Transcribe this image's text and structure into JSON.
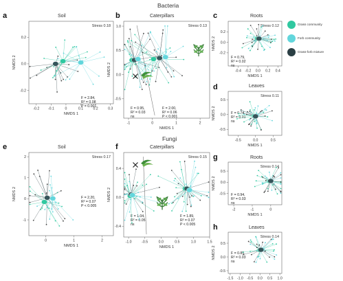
{
  "sections": {
    "bacteria": "Bacteria",
    "fungi": "Fungi"
  },
  "colors": {
    "grass": "#30c8a0",
    "forb": "#62d6dc",
    "mixture": "#2b3f44",
    "mixture_centroid": "#35555a",
    "line_dark": "#3d4d52",
    "axis": "#666666"
  },
  "legend": [
    {
      "label": "Grass community",
      "color": "#30c8a0"
    },
    {
      "label": "Forb community",
      "color": "#62d6dc"
    },
    {
      "label": "Grass-forb mixture",
      "color": "#2b3f44"
    }
  ],
  "chart_data": [
    {
      "id": "a",
      "letter": "a",
      "title": "Soil",
      "type": "scatter",
      "xlabel": "NMDS 1",
      "ylabel": "NMDS 2",
      "stress": "Stress 0.18",
      "xlim": [
        -0.25,
        0.32
      ],
      "ylim": [
        -0.3,
        0.32
      ],
      "xticks": [
        -0.2,
        -0.1,
        0,
        0.1,
        0.2,
        0.3
      ],
      "yticks": [
        -0.2,
        0,
        0.2
      ],
      "xtick_labels": [
        "-0.2",
        "-0.1",
        "0",
        "0.1",
        "0.2",
        "0.3"
      ],
      "ytick_labels": [
        "-0.2",
        "0.0",
        "0.2"
      ],
      "stats": {
        "f": "F = 2.84,",
        "r2": "R² = 0.08",
        "p": "P = 0.001"
      },
      "centroids": [
        {
          "group": "mixture",
          "x": -0.07,
          "y": 0.0
        },
        {
          "group": "grass",
          "x": -0.02,
          "y": 0.02
        },
        {
          "group": "forb",
          "x": 0.1,
          "y": 0.01
        }
      ]
    },
    {
      "id": "b",
      "letter": "b",
      "title": "Caterpillars",
      "type": "scatter",
      "xlabel": "NMDS 1",
      "ylabel": "NMDS 2",
      "stress": "Stress 0.13",
      "xlim": [
        -1.2,
        2.4
      ],
      "ylim": [
        -0.9,
        1.1
      ],
      "xticks": [
        -1,
        0,
        1,
        2
      ],
      "yticks": [
        -0.5,
        0,
        0.5,
        1.0
      ],
      "xtick_labels": [
        "-1",
        "0",
        "1",
        "2"
      ],
      "ytick_labels": [
        "-0.5",
        "0.0",
        "0.5",
        "1.0"
      ],
      "stats_left": {
        "f": "F = 0.95,",
        "r2": "R² = 0.03",
        "p": "ns"
      },
      "stats_right": {
        "f": "F = 2.00,",
        "r2": "R² = 0.06",
        "p": "P < 0.001"
      },
      "centroids": [
        {
          "group": "grass",
          "x": -0.85,
          "y": 0.3
        },
        {
          "group": "mixture",
          "x": -0.75,
          "y": 0.3
        },
        {
          "group": "forb",
          "x": -0.6,
          "y": 0.32
        },
        {
          "group": "grass",
          "x": 0.05,
          "y": 0.32
        },
        {
          "group": "mixture",
          "x": 0.3,
          "y": 0.34
        },
        {
          "group": "forb",
          "x": 0.55,
          "y": 0.36
        }
      ]
    },
    {
      "id": "c",
      "letter": "c",
      "title": "Roots",
      "type": "scatter",
      "xlabel": "NMDS 1",
      "ylabel": "NMDS 2",
      "stress": "Stress 0.12",
      "xlim": [
        -0.6,
        0.48
      ],
      "ylim": [
        -0.45,
        0.4
      ],
      "xticks": [
        -0.4,
        -0.2,
        0,
        0.2,
        0.4
      ],
      "yticks": [
        -0.2,
        0,
        0.2
      ],
      "xtick_labels": [
        "-0.4",
        "-0.2",
        "0.0",
        "0.2",
        "0.4"
      ],
      "ytick_labels": [
        "-0.2",
        "0.0",
        "0.2"
      ],
      "stats": {
        "f": "F = 0.79,",
        "r2": "R² = 0.02",
        "p": "ns"
      },
      "centroids": [
        {
          "group": "grass",
          "x": -0.01,
          "y": 0.07
        },
        {
          "group": "forb",
          "x": 0.03,
          "y": 0.07
        },
        {
          "group": "mixture",
          "x": 0.02,
          "y": 0.07
        }
      ]
    },
    {
      "id": "d",
      "letter": "d",
      "title": "Leaves",
      "type": "scatter",
      "xlabel": "NMDS 1",
      "ylabel": "NMDS 2",
      "stress": "Stress 0.11",
      "xlim": [
        -0.78,
        0.75
      ],
      "ylim": [
        -0.7,
        0.78
      ],
      "xticks": [
        -0.5,
        0,
        0.5
      ],
      "yticks": [
        -0.5,
        0,
        0.5
      ],
      "xtick_labels": [
        "-0.5",
        "0.0",
        "0.5"
      ],
      "ytick_labels": [
        "-0.5",
        "0.0",
        "0.5"
      ],
      "stats": {
        "f": "F = 0.74,",
        "r2": "R² = 0.01",
        "p": "ns"
      },
      "centroids": [
        {
          "group": "grass",
          "x": -0.03,
          "y": -0.05
        },
        {
          "group": "forb",
          "x": 0.02,
          "y": -0.04
        },
        {
          "group": "mixture",
          "x": 0.0,
          "y": -0.06
        }
      ]
    },
    {
      "id": "e",
      "letter": "e",
      "title": "Soil",
      "type": "scatter",
      "xlabel": "NMDS 1",
      "ylabel": "NMDS 2",
      "stress": "Stress 0.17",
      "xlim": [
        -0.6,
        2.4
      ],
      "ylim": [
        -1.75,
        2.2
      ],
      "xticks": [
        0,
        1,
        2
      ],
      "yticks": [
        -1,
        0,
        1,
        2
      ],
      "xtick_labels": [
        "0",
        "1",
        "2"
      ],
      "ytick_labels": [
        "-1",
        "0",
        "1",
        "2"
      ],
      "stats": {
        "f": "F = 2.20,",
        "r2": "R² = 0.07",
        "p": "P < 0.005"
      },
      "centroids": [
        {
          "group": "grass",
          "x": -0.05,
          "y": -0.15
        },
        {
          "group": "mixture",
          "x": 0.05,
          "y": 0.05
        },
        {
          "group": "forb",
          "x": 0.25,
          "y": 0.02
        }
      ]
    },
    {
      "id": "f",
      "letter": "f",
      "title": "Caterpillars",
      "type": "scatter",
      "xlabel": "NMDS 1",
      "ylabel": "NMDS 2",
      "stress": "Stress 0.15",
      "xlim": [
        -1.15,
        1.5
      ],
      "ylim": [
        -0.55,
        0.62
      ],
      "xticks": [
        -1.0,
        -0.5,
        0,
        0.5,
        1.0,
        1.5
      ],
      "yticks": [
        -0.4,
        0,
        0.4
      ],
      "xtick_labels": [
        "-1.0",
        "-0.5",
        "0.0",
        "0.5",
        "1.0",
        "1.5"
      ],
      "ytick_labels": [
        "-0.4",
        "0.0",
        "0.4"
      ],
      "stats_left": {
        "f": "F = 1.04,",
        "r2": "R² = 0.05",
        "p": "ns"
      },
      "stats_right": {
        "f": "F = 1.89,",
        "r2": "R² = 0.07",
        "p": "P < 0.005"
      },
      "centroids": [
        {
          "group": "grass",
          "x": -0.95,
          "y": 0.02
        },
        {
          "group": "mixture",
          "x": -0.92,
          "y": 0.04
        },
        {
          "group": "forb",
          "x": -0.88,
          "y": 0.03
        },
        {
          "group": "grass",
          "x": 0.75,
          "y": 0.12
        },
        {
          "group": "mixture",
          "x": 0.8,
          "y": 0.12
        },
        {
          "group": "forb",
          "x": 0.88,
          "y": 0.1
        }
      ]
    },
    {
      "id": "g",
      "letter": "g",
      "title": "Roots",
      "type": "scatter",
      "xlabel": "NMDS 1",
      "ylabel": "NMDS 2",
      "stress": "Stress 0.14",
      "xlim": [
        -2.3,
        0.6
      ],
      "ylim": [
        -1.0,
        0.9
      ],
      "xticks": [
        -2,
        -1,
        0
      ],
      "yticks": [
        -0.5,
        0,
        0.5
      ],
      "xtick_labels": [
        "-2",
        "-1",
        "0"
      ],
      "ytick_labels": [
        "-0.5",
        "0.0",
        "0.5"
      ],
      "stats": {
        "f": "F = 0.94,",
        "r2": "R² = 0.03",
        "p": "ns"
      },
      "centroids": [
        {
          "group": "grass",
          "x": -0.05,
          "y": 0.05
        },
        {
          "group": "forb",
          "x": 0.02,
          "y": 0.07
        },
        {
          "group": "mixture",
          "x": 0.0,
          "y": 0.06
        }
      ]
    },
    {
      "id": "h",
      "letter": "h",
      "title": "Leaves",
      "type": "scatter",
      "xlabel": "NMDS 1",
      "ylabel": "NMDS 2",
      "stress": "Stress 0.14",
      "xlim": [
        -1.6,
        1.1
      ],
      "ylim": [
        -0.6,
        0.9
      ],
      "xticks": [
        -1.5,
        -1.0,
        -0.5,
        0,
        0.5,
        1.0
      ],
      "yticks": [
        -0.5,
        0,
        0.5
      ],
      "xtick_labels": [
        "-1.5",
        "-1.0",
        "-0.5",
        "0.0",
        "0.5",
        "1.0"
      ],
      "ytick_labels": [
        "-0.5",
        "0.0",
        "0.5"
      ],
      "stats": {
        "f": "F = 0.85,",
        "r2": "R² = 0.03",
        "p": "ns"
      },
      "centroids": [
        {
          "group": "grass",
          "x": 0.0,
          "y": 0.25
        },
        {
          "group": "forb",
          "x": 0.1,
          "y": 0.27
        },
        {
          "group": "mixture",
          "x": 0.05,
          "y": 0.26
        }
      ]
    }
  ]
}
